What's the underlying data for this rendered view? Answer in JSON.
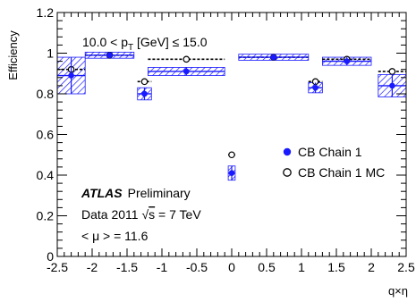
{
  "chart_data": {
    "type": "scatter",
    "xlabel": "q×η",
    "ylabel": "Efficiency",
    "xlim": [
      -2.5,
      2.5
    ],
    "ylim": [
      0,
      1.2
    ],
    "x_ticks": [
      "-2.5",
      "-2",
      "-1.5",
      "-1",
      "-0.5",
      "0",
      "0.5",
      "1",
      "1.5",
      "2",
      "2.5"
    ],
    "y_ticks": [
      "0",
      "0.2",
      "0.4",
      "0.6",
      "0.8",
      "1",
      "1.2"
    ],
    "grid": false,
    "legend_position": "right",
    "annotations": {
      "pt_range_prefix": "10.0 < p",
      "pt_range_sub": "T",
      "pt_range_suffix": " [GeV] ≤ 15.0",
      "atlas": "ATLAS",
      "preliminary": "Preliminary",
      "data_prefix": "Data 2011 ",
      "data_sqrt": "√",
      "data_s": "s",
      "data_suffix": " = 7 TeV",
      "mu": "< μ > = 11.6"
    },
    "colors": {
      "data": "#1a1aff",
      "mc": "#000000"
    },
    "series": [
      {
        "name": "CB Chain 1",
        "marker": "filled-circle",
        "x": [
          -2.3,
          -1.75,
          -1.25,
          -0.65,
          0,
          0.6,
          1.2,
          1.65,
          2.3
        ],
        "y": [
          0.89,
          0.99,
          0.8,
          0.91,
          0.41,
          0.98,
          0.83,
          0.96,
          0.84
        ],
        "x_err": [
          0.2,
          0.35,
          0.1,
          0.55,
          0.05,
          0.5,
          0.1,
          0.35,
          0.2
        ],
        "band": [
          0.09,
          0.015,
          0.03,
          0.02,
          0.035,
          0.015,
          0.025,
          0.02,
          0.055
        ]
      },
      {
        "name": "CB Chain 1 MC",
        "marker": "open-circle",
        "x": [
          -2.3,
          -1.75,
          -1.25,
          -0.65,
          0,
          0.6,
          1.2,
          1.65,
          2.3
        ],
        "y": [
          0.92,
          0.99,
          0.86,
          0.97,
          0.5,
          0.98,
          0.86,
          0.97,
          0.91
        ],
        "x_err": [
          0.2,
          0.35,
          0.1,
          0.55,
          0.05,
          0.5,
          0.1,
          0.35,
          0.2
        ]
      }
    ]
  }
}
